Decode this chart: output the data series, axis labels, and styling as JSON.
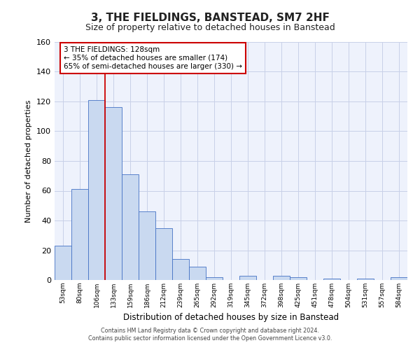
{
  "title": "3, THE FIELDINGS, BANSTEAD, SM7 2HF",
  "subtitle": "Size of property relative to detached houses in Banstead",
  "xlabel": "Distribution of detached houses by size in Banstead",
  "ylabel": "Number of detached properties",
  "bar_labels": [
    "53sqm",
    "80sqm",
    "106sqm",
    "133sqm",
    "159sqm",
    "186sqm",
    "212sqm",
    "239sqm",
    "265sqm",
    "292sqm",
    "319sqm",
    "345sqm",
    "372sqm",
    "398sqm",
    "425sqm",
    "451sqm",
    "478sqm",
    "504sqm",
    "531sqm",
    "557sqm",
    "584sqm"
  ],
  "bar_values": [
    23,
    61,
    121,
    116,
    71,
    46,
    35,
    14,
    9,
    2,
    0,
    3,
    0,
    3,
    2,
    0,
    1,
    0,
    1,
    0,
    2
  ],
  "bar_color": "#c9d9f0",
  "bar_edge_color": "#4472c4",
  "grid_color": "#c8d0e8",
  "background_color": "#eef2fc",
  "vline_x_index": 3,
  "vline_color": "#cc0000",
  "annotation_text": "3 THE FIELDINGS: 128sqm\n← 35% of detached houses are smaller (174)\n65% of semi-detached houses are larger (330) →",
  "annotation_box_color": "#ffffff",
  "annotation_box_edge": "#cc0000",
  "ylim": [
    0,
    160
  ],
  "yticks": [
    0,
    20,
    40,
    60,
    80,
    100,
    120,
    140,
    160
  ],
  "footer_line1": "Contains HM Land Registry data © Crown copyright and database right 2024.",
  "footer_line2": "Contains public sector information licensed under the Open Government Licence v3.0."
}
